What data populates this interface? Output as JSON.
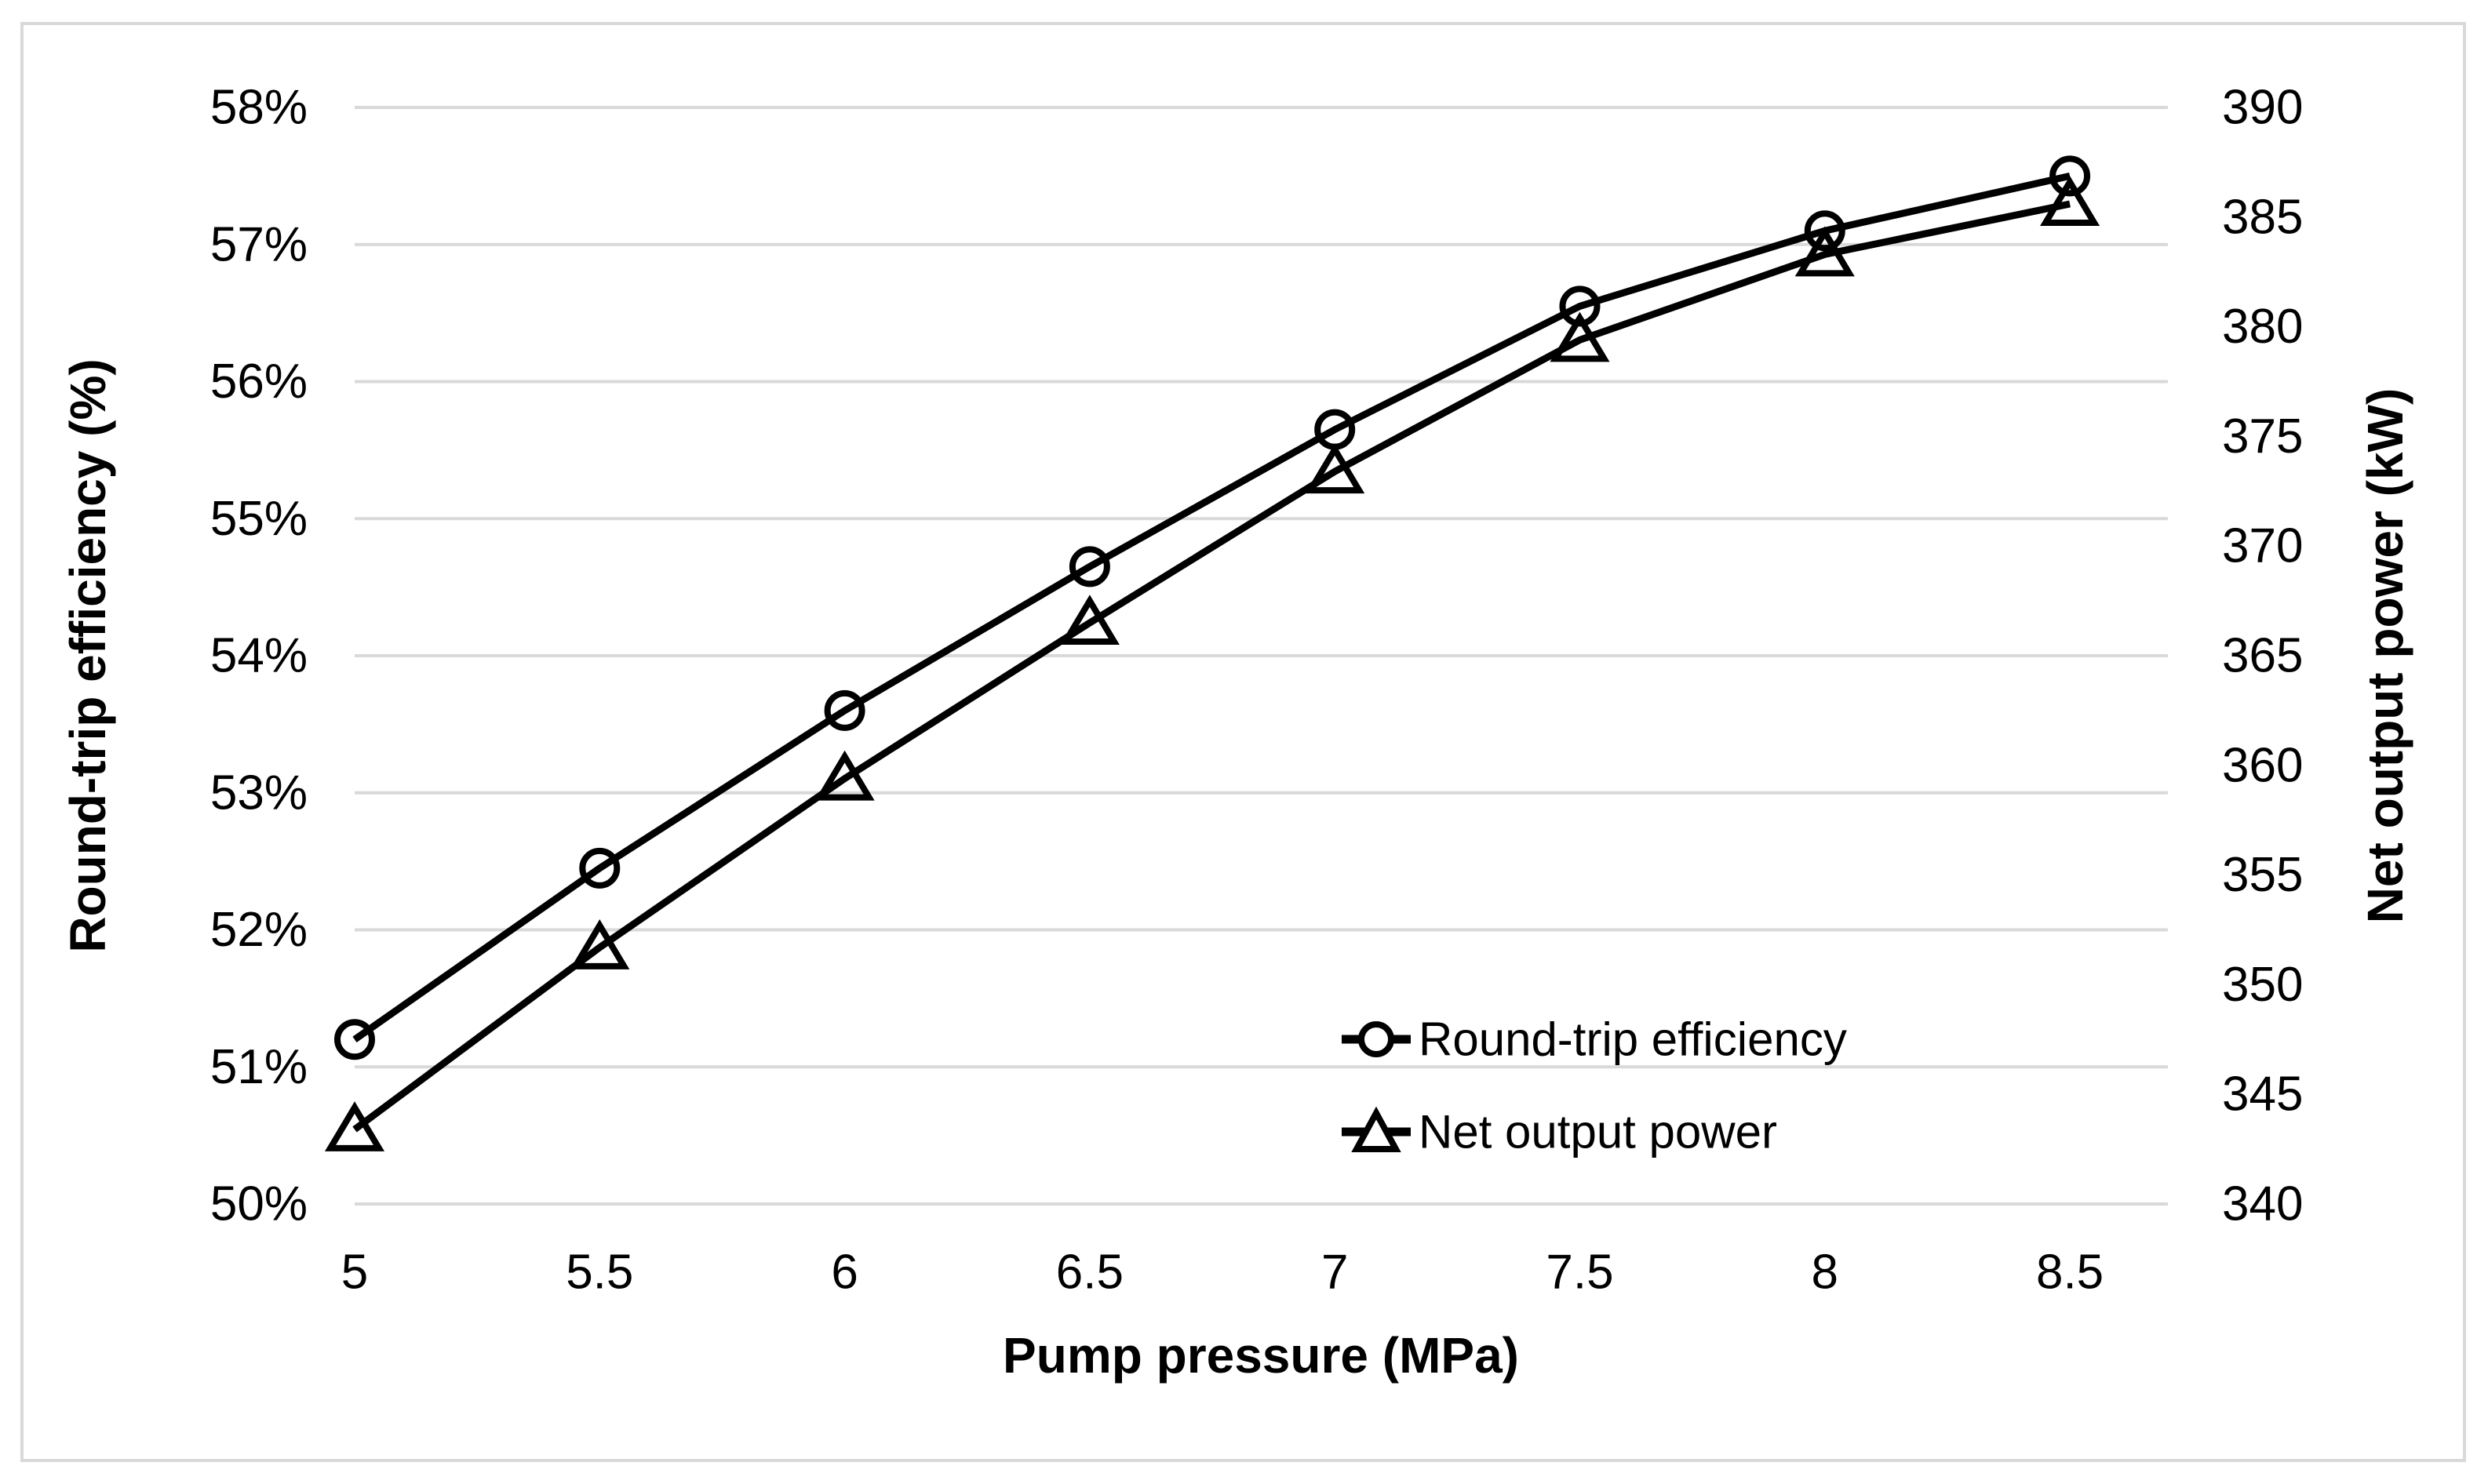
{
  "colors": {
    "series_line": "#000000",
    "gridline": "#d9d9d9",
    "figure_border": "#d9d9d9",
    "background": "#ffffff",
    "text": "#000000"
  },
  "chart_data": {
    "type": "line",
    "x": [
      5,
      5.5,
      6,
      6.5,
      7,
      7.5,
      8,
      8.5
    ],
    "x_tick_labels": [
      "5",
      "5.5",
      "6",
      "6.5",
      "7",
      "7.5",
      "8",
      "8.5"
    ],
    "xlabel": "Pump pressure (MPa)",
    "xlim": [
      5,
      8.7
    ],
    "grid": "horizontal-only",
    "legend_position": "inside-lower-right",
    "left_axis": {
      "label": "Round-trip efficiency (%)",
      "min": 50,
      "max": 58,
      "ticks": [
        50,
        51,
        52,
        53,
        54,
        55,
        56,
        57,
        58
      ],
      "tick_labels": [
        "50%",
        "51%",
        "52%",
        "53%",
        "54%",
        "55%",
        "56%",
        "57%",
        "58%"
      ]
    },
    "right_axis": {
      "label": "Net output power (kW)",
      "min": 340,
      "max": 390,
      "ticks": [
        340,
        345,
        350,
        355,
        360,
        365,
        370,
        375,
        380,
        385,
        390
      ],
      "tick_labels": [
        "340",
        "345",
        "350",
        "355",
        "360",
        "365",
        "370",
        "375",
        "380",
        "385",
        "390"
      ]
    },
    "series": [
      {
        "name": "Round-trip efficiency",
        "axis": "left",
        "marker": "circle",
        "values": [
          51.2,
          52.45,
          53.6,
          54.65,
          55.65,
          56.55,
          57.1,
          57.5
        ]
      },
      {
        "name": "Net output power",
        "axis": "right",
        "marker": "triangle",
        "values": [
          343.4,
          351.7,
          359.4,
          366.5,
          373.4,
          379.4,
          383.3,
          385.6
        ]
      }
    ]
  }
}
